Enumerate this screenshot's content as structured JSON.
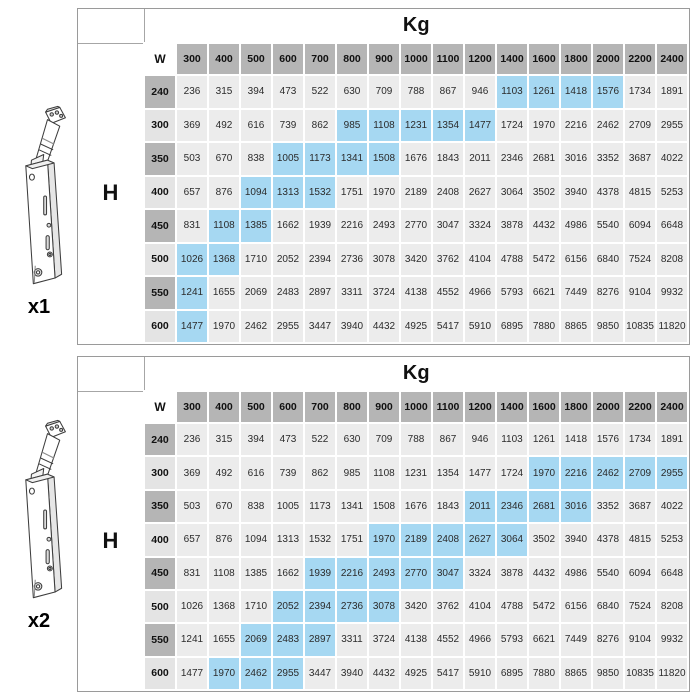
{
  "unit_label": "Kg",
  "col_axis_label": "W",
  "row_axis_label": "H",
  "columns": [
    "300",
    "400",
    "500",
    "600",
    "700",
    "800",
    "900",
    "1000",
    "1100",
    "1200",
    "1400",
    "1600",
    "1800",
    "2000",
    "2200",
    "2400"
  ],
  "rows": [
    "240",
    "300",
    "350",
    "400",
    "450",
    "500",
    "550",
    "600"
  ],
  "values": [
    [
      236,
      315,
      394,
      473,
      522,
      630,
      709,
      788,
      867,
      946,
      1103,
      1261,
      1418,
      1576,
      1734,
      1891
    ],
    [
      369,
      492,
      616,
      739,
      862,
      985,
      1108,
      1231,
      1354,
      1477,
      1724,
      1970,
      2216,
      2462,
      2709,
      2955
    ],
    [
      503,
      670,
      838,
      1005,
      1173,
      1341,
      1508,
      1676,
      1843,
      2011,
      2346,
      2681,
      3016,
      3352,
      3687,
      4022
    ],
    [
      657,
      876,
      1094,
      1313,
      1532,
      1751,
      1970,
      2189,
      2408,
      2627,
      3064,
      3502,
      3940,
      4378,
      4815,
      5253
    ],
    [
      831,
      1108,
      1385,
      1662,
      1939,
      2216,
      2493,
      2770,
      3047,
      3324,
      3878,
      4432,
      4986,
      5540,
      6094,
      6648
    ],
    [
      1026,
      1368,
      1710,
      2052,
      2394,
      2736,
      3078,
      3420,
      3762,
      4104,
      4788,
      5472,
      6156,
      6840,
      7524,
      8208
    ],
    [
      1241,
      1655,
      2069,
      2483,
      2897,
      3311,
      3724,
      4138,
      4552,
      4966,
      5793,
      6621,
      7449,
      8276,
      9104,
      9932
    ],
    [
      1477,
      1970,
      2462,
      2955,
      3447,
      3940,
      4432,
      4925,
      5417,
      5910,
      6895,
      7880,
      8865,
      9850,
      10835,
      11820
    ]
  ],
  "tables": [
    {
      "label": "x1",
      "illustration": "lift-arm-unit",
      "highlights": {
        "240": [
          "1400",
          "1600",
          "1800",
          "2000"
        ],
        "300": [
          "800",
          "900",
          "1000",
          "1100",
          "1200"
        ],
        "350": [
          "600",
          "700",
          "800",
          "900"
        ],
        "400": [
          "500",
          "600",
          "700"
        ],
        "450": [
          "400",
          "500"
        ],
        "500": [
          "300",
          "400"
        ],
        "550": [
          "300"
        ],
        "600": [
          "300"
        ]
      }
    },
    {
      "label": "x2",
      "illustration": "lift-arm-unit",
      "highlights": {
        "300": [
          "1600",
          "1800",
          "2000",
          "2200",
          "2400"
        ],
        "350": [
          "1200",
          "1400",
          "1600",
          "1800"
        ],
        "400": [
          "900",
          "1000",
          "1100",
          "1200",
          "1400"
        ],
        "450": [
          "700",
          "800",
          "900",
          "1000",
          "1100"
        ],
        "500": [
          "600",
          "700",
          "800",
          "900"
        ],
        "550": [
          "500",
          "600",
          "700"
        ],
        "600": [
          "400",
          "500",
          "600"
        ]
      }
    }
  ],
  "colors": {
    "highlight_blue": "#a6d8f2",
    "header_gray_dark": "#b5b5b5",
    "header_gray_light": "#e4e4e4",
    "cell_gray": "#ececec"
  }
}
